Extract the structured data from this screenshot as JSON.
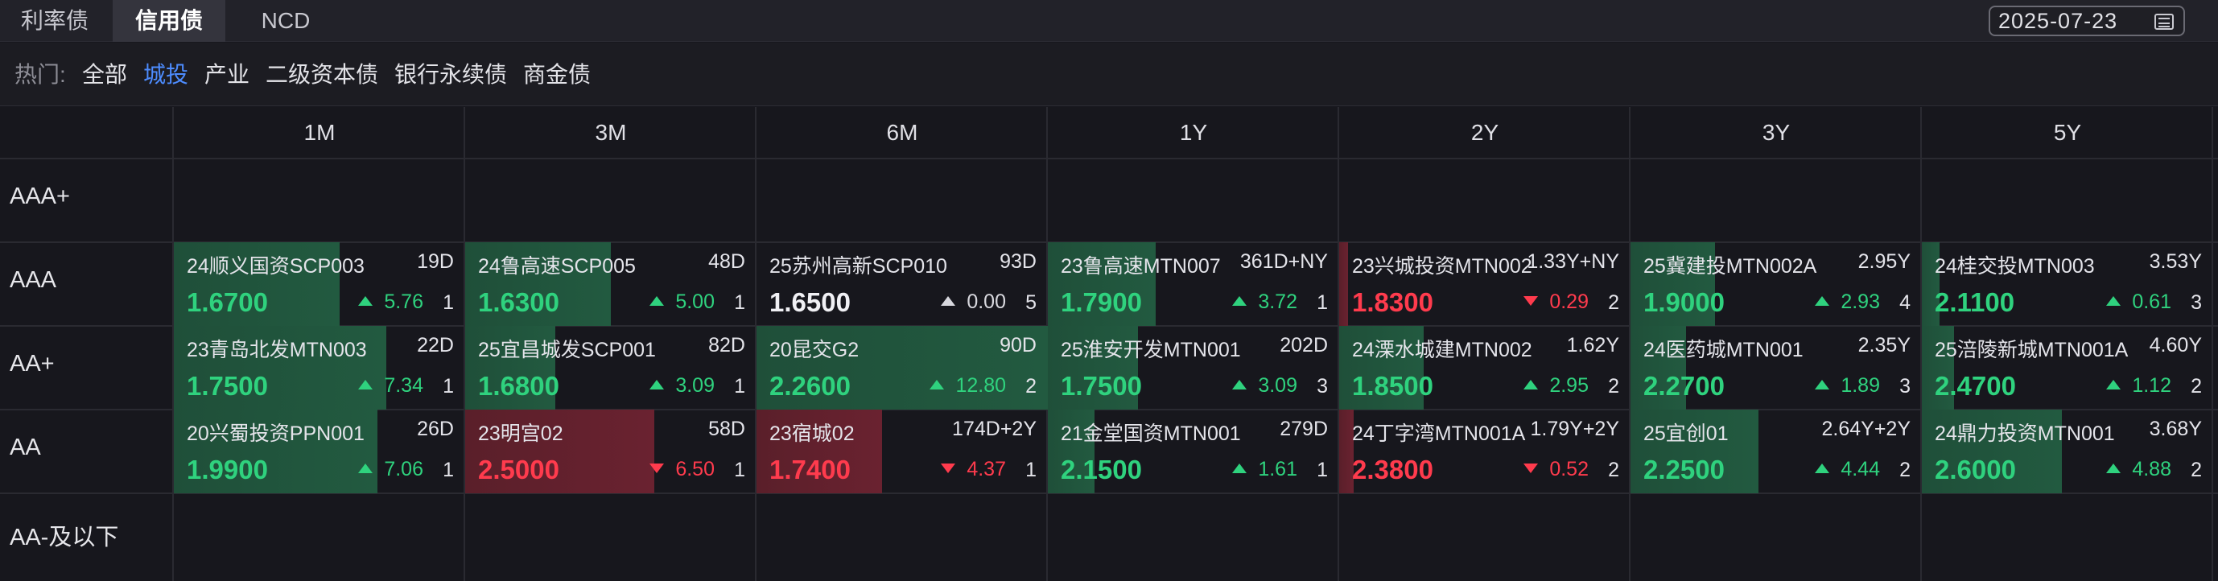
{
  "tabs": [
    {
      "label": "利率债",
      "active": false
    },
    {
      "label": "信用债",
      "active": true
    },
    {
      "label": "NCD",
      "active": false
    }
  ],
  "date": "2025-07-23",
  "date_icon": "calendar-icon",
  "filter": {
    "label": "热门:",
    "items": [
      {
        "label": "全部",
        "active": false
      },
      {
        "label": "城投",
        "active": true
      },
      {
        "label": "产业",
        "active": false
      },
      {
        "label": "二级资本债",
        "active": false
      },
      {
        "label": "银行永续债",
        "active": false
      },
      {
        "label": "商金债",
        "active": false
      }
    ]
  },
  "columns": [
    "1M",
    "3M",
    "6M",
    "1Y",
    "2Y",
    "3Y",
    "5Y"
  ],
  "rows": [
    "AAA+",
    "AAA",
    "AA+",
    "AA",
    "AA-及以下"
  ],
  "colors": {
    "up": "#2fd27e",
    "down": "#ff3b4d",
    "accent": "#4d8cff"
  },
  "cells": [
    [
      null,
      null,
      null,
      null,
      null,
      null,
      null
    ],
    [
      {
        "name": "24顺义国资SCP003",
        "tenor": "19D",
        "yield": "1.6700",
        "change": "5.76",
        "dir": "up",
        "count": "1",
        "intensity": 0.57
      },
      {
        "name": "24鲁高速SCP005",
        "tenor": "48D",
        "yield": "1.6300",
        "change": "5.00",
        "dir": "up",
        "count": "1",
        "intensity": 0.5
      },
      {
        "name": "25苏州高新SCP010",
        "tenor": "93D",
        "yield": "1.6500",
        "change": "0.00",
        "dir": "flat",
        "count": "5",
        "intensity": 0.0
      },
      {
        "name": "23鲁高速MTN007",
        "tenor": "361D+NY",
        "yield": "1.7900",
        "change": "3.72",
        "dir": "up",
        "count": "1",
        "intensity": 0.37
      },
      {
        "name": "23兴城投资MTN002",
        "tenor": "1.33Y+NY",
        "yield": "1.8300",
        "change": "0.29",
        "dir": "down",
        "count": "2",
        "intensity": 0.03
      },
      {
        "name": "25冀建投MTN002A",
        "tenor": "2.95Y",
        "yield": "1.9000",
        "change": "2.93",
        "dir": "up",
        "count": "4",
        "intensity": 0.29
      },
      {
        "name": "24桂交投MTN003",
        "tenor": "3.53Y",
        "yield": "2.1100",
        "change": "0.61",
        "dir": "up",
        "count": "3",
        "intensity": 0.06
      }
    ],
    [
      {
        "name": "23青岛北发MTN003",
        "tenor": "22D",
        "yield": "1.7500",
        "change": "7.34",
        "dir": "up",
        "count": "1",
        "intensity": 0.73
      },
      {
        "name": "25宜昌城发SCP001",
        "tenor": "82D",
        "yield": "1.6800",
        "change": "3.09",
        "dir": "up",
        "count": "1",
        "intensity": 0.31
      },
      {
        "name": "20昆交G2",
        "tenor": "90D",
        "yield": "2.2600",
        "change": "12.80",
        "dir": "up",
        "count": "2",
        "intensity": 1.0
      },
      {
        "name": "25淮安开发MTN001",
        "tenor": "202D",
        "yield": "1.7500",
        "change": "3.09",
        "dir": "up",
        "count": "3",
        "intensity": 0.31
      },
      {
        "name": "24溧水城建MTN002",
        "tenor": "1.62Y",
        "yield": "1.8500",
        "change": "2.95",
        "dir": "up",
        "count": "2",
        "intensity": 0.29
      },
      {
        "name": "24医药城MTN001",
        "tenor": "2.35Y",
        "yield": "2.2700",
        "change": "1.89",
        "dir": "up",
        "count": "3",
        "intensity": 0.19
      },
      {
        "name": "25涪陵新城MTN001A",
        "tenor": "4.60Y",
        "yield": "2.4700",
        "change": "1.12",
        "dir": "up",
        "count": "2",
        "intensity": 0.11
      }
    ],
    [
      {
        "name": "20兴蜀投资PPN001",
        "tenor": "26D",
        "yield": "1.9900",
        "change": "7.06",
        "dir": "up",
        "count": "1",
        "intensity": 0.7
      },
      {
        "name": "23明宫02",
        "tenor": "58D",
        "yield": "2.5000",
        "change": "6.50",
        "dir": "down",
        "count": "1",
        "intensity": 0.65
      },
      {
        "name": "23宿城02",
        "tenor": "174D+2Y",
        "yield": "1.7400",
        "change": "4.37",
        "dir": "down",
        "count": "1",
        "intensity": 0.43
      },
      {
        "name": "21金堂国资MTN001",
        "tenor": "279D",
        "yield": "2.1500",
        "change": "1.61",
        "dir": "up",
        "count": "1",
        "intensity": 0.16
      },
      {
        "name": "24丁字湾MTN001A",
        "tenor": "1.79Y+2Y",
        "yield": "2.3800",
        "change": "0.52",
        "dir": "down",
        "count": "2",
        "intensity": 0.05
      },
      {
        "name": "25宜创01",
        "tenor": "2.64Y+2Y",
        "yield": "2.2500",
        "change": "4.44",
        "dir": "up",
        "count": "2",
        "intensity": 0.44
      },
      {
        "name": "24鼎力投资MTN001",
        "tenor": "3.68Y",
        "yield": "2.6000",
        "change": "4.88",
        "dir": "up",
        "count": "2",
        "intensity": 0.48
      }
    ],
    [
      null,
      null,
      null,
      null,
      null,
      null,
      null
    ]
  ]
}
